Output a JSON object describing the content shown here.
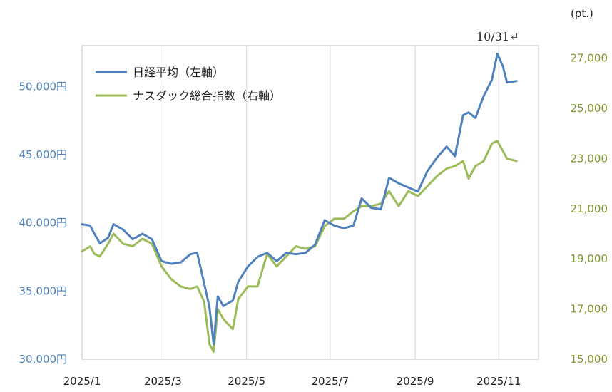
{
  "chart_data": {
    "type": "line",
    "title": "",
    "right_unit": "(pt.)",
    "annotation": "10/31↵",
    "x_ticks": [
      "2025/1",
      "2025/3",
      "2025/5",
      "2025/7",
      "2025/9",
      "2025/11"
    ],
    "y_left": {
      "range": [
        30000,
        53000
      ],
      "ticks": [
        "30,000円",
        "35,000円",
        "40,000円",
        "45,000円",
        "50,000円"
      ],
      "tick_values": [
        30000,
        35000,
        40000,
        45000,
        50000
      ]
    },
    "y_right": {
      "range": [
        15000,
        27500
      ],
      "ticks": [
        "15,000",
        "17,000",
        "19,000",
        "21,000",
        "23,000",
        "25,000",
        "27,000"
      ],
      "tick_values": [
        15000,
        17000,
        19000,
        21000,
        23000,
        25000,
        27000
      ]
    },
    "grid": "vertical",
    "legend_position": "top-left",
    "colors": {
      "nikkei": "#4f81bd",
      "nasdaq": "#9bbb59"
    },
    "series": [
      {
        "name": "日経平均（左軸）",
        "axis": "left",
        "points": [
          [
            "2025-01-01",
            39900
          ],
          [
            "2025-01-07",
            39800
          ],
          [
            "2025-01-10",
            39200
          ],
          [
            "2025-01-14",
            38500
          ],
          [
            "2025-01-20",
            38900
          ],
          [
            "2025-01-24",
            39900
          ],
          [
            "2025-01-31",
            39500
          ],
          [
            "2025-02-07",
            38800
          ],
          [
            "2025-02-14",
            39200
          ],
          [
            "2025-02-21",
            38800
          ],
          [
            "2025-02-28",
            37200
          ],
          [
            "2025-03-07",
            37000
          ],
          [
            "2025-03-14",
            37100
          ],
          [
            "2025-03-21",
            37700
          ],
          [
            "2025-03-26",
            37800
          ],
          [
            "2025-03-31",
            35600
          ],
          [
            "2025-04-04",
            33800
          ],
          [
            "2025-04-07",
            31100
          ],
          [
            "2025-04-10",
            34600
          ],
          [
            "2025-04-14",
            33900
          ],
          [
            "2025-04-21",
            34300
          ],
          [
            "2025-04-25",
            35700
          ],
          [
            "2025-05-02",
            36800
          ],
          [
            "2025-05-09",
            37500
          ],
          [
            "2025-05-16",
            37800
          ],
          [
            "2025-05-23",
            37200
          ],
          [
            "2025-05-30",
            37800
          ],
          [
            "2025-06-06",
            37700
          ],
          [
            "2025-06-13",
            37800
          ],
          [
            "2025-06-20",
            38400
          ],
          [
            "2025-06-27",
            40200
          ],
          [
            "2025-07-04",
            39800
          ],
          [
            "2025-07-11",
            39600
          ],
          [
            "2025-07-18",
            39800
          ],
          [
            "2025-07-24",
            41800
          ],
          [
            "2025-07-31",
            41100
          ],
          [
            "2025-08-07",
            41000
          ],
          [
            "2025-08-13",
            43300
          ],
          [
            "2025-08-20",
            42900
          ],
          [
            "2025-08-27",
            42600
          ],
          [
            "2025-09-03",
            42300
          ],
          [
            "2025-09-10",
            43800
          ],
          [
            "2025-09-17",
            44800
          ],
          [
            "2025-09-24",
            45600
          ],
          [
            "2025-09-30",
            44900
          ],
          [
            "2025-10-06",
            47900
          ],
          [
            "2025-10-10",
            48100
          ],
          [
            "2025-10-15",
            47700
          ],
          [
            "2025-10-21",
            49300
          ],
          [
            "2025-10-27",
            50500
          ],
          [
            "2025-10-31",
            52400
          ],
          [
            "2025-11-04",
            51500
          ],
          [
            "2025-11-07",
            50300
          ],
          [
            "2025-11-14",
            50400
          ]
        ]
      },
      {
        "name": "ナスダック総合指数（右軸）",
        "axis": "right",
        "points": [
          [
            "2025-01-01",
            19300
          ],
          [
            "2025-01-07",
            19500
          ],
          [
            "2025-01-10",
            19200
          ],
          [
            "2025-01-14",
            19100
          ],
          [
            "2025-01-20",
            19600
          ],
          [
            "2025-01-24",
            20000
          ],
          [
            "2025-01-31",
            19600
          ],
          [
            "2025-02-07",
            19500
          ],
          [
            "2025-02-14",
            19800
          ],
          [
            "2025-02-21",
            19600
          ],
          [
            "2025-02-28",
            18700
          ],
          [
            "2025-03-07",
            18200
          ],
          [
            "2025-03-14",
            17900
          ],
          [
            "2025-03-21",
            17800
          ],
          [
            "2025-03-26",
            17900
          ],
          [
            "2025-03-31",
            17300
          ],
          [
            "2025-04-04",
            15600
          ],
          [
            "2025-04-07",
            15300
          ],
          [
            "2025-04-10",
            17000
          ],
          [
            "2025-04-14",
            16600
          ],
          [
            "2025-04-21",
            16200
          ],
          [
            "2025-04-25",
            17400
          ],
          [
            "2025-05-02",
            17900
          ],
          [
            "2025-05-09",
            17900
          ],
          [
            "2025-05-16",
            19200
          ],
          [
            "2025-05-23",
            18700
          ],
          [
            "2025-05-30",
            19100
          ],
          [
            "2025-06-06",
            19500
          ],
          [
            "2025-06-13",
            19400
          ],
          [
            "2025-06-20",
            19500
          ],
          [
            "2025-06-27",
            20300
          ],
          [
            "2025-07-04",
            20600
          ],
          [
            "2025-07-11",
            20600
          ],
          [
            "2025-07-18",
            20900
          ],
          [
            "2025-07-24",
            21100
          ],
          [
            "2025-07-31",
            21100
          ],
          [
            "2025-08-07",
            21200
          ],
          [
            "2025-08-13",
            21700
          ],
          [
            "2025-08-20",
            21100
          ],
          [
            "2025-08-27",
            21700
          ],
          [
            "2025-09-03",
            21500
          ],
          [
            "2025-09-10",
            21900
          ],
          [
            "2025-09-17",
            22300
          ],
          [
            "2025-09-24",
            22600
          ],
          [
            "2025-09-30",
            22700
          ],
          [
            "2025-10-06",
            22900
          ],
          [
            "2025-10-10",
            22200
          ],
          [
            "2025-10-15",
            22700
          ],
          [
            "2025-10-21",
            22900
          ],
          [
            "2025-10-27",
            23600
          ],
          [
            "2025-10-31",
            23700
          ],
          [
            "2025-11-04",
            23300
          ],
          [
            "2025-11-07",
            23000
          ],
          [
            "2025-11-14",
            22900
          ]
        ]
      }
    ]
  }
}
